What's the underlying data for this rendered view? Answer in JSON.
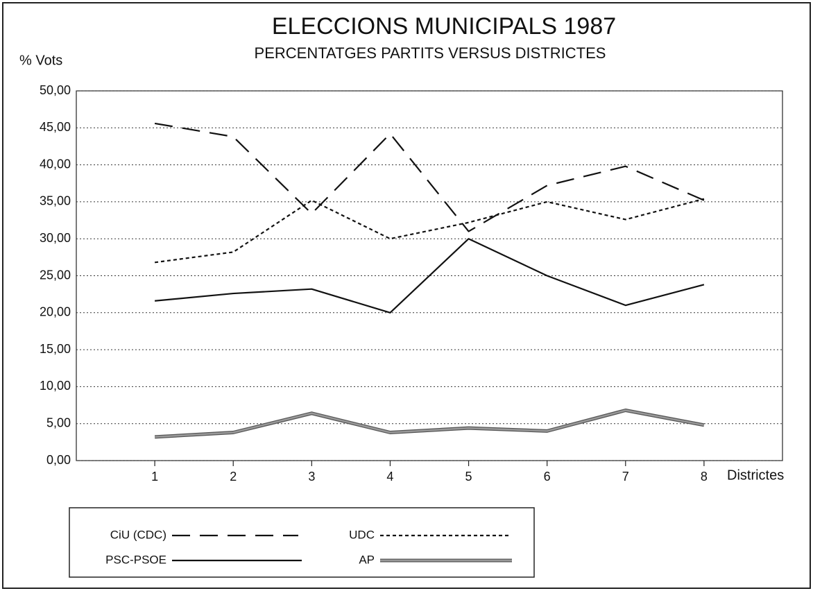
{
  "chart_data": {
    "type": "line",
    "title": "ELECCIONS MUNICIPALS 1987",
    "subtitle": "PERCENTATGES PARTITS VERSUS DISTRICTES",
    "y_label": "% Vots",
    "x_label": "Districtes",
    "x": [
      1,
      2,
      3,
      4,
      5,
      6,
      7,
      8
    ],
    "xlim": [
      0,
      9
    ],
    "xticks": [
      1,
      2,
      3,
      4,
      5,
      6,
      7,
      8
    ],
    "ylim": [
      0,
      50
    ],
    "yticks": [
      {
        "value": 0,
        "label": "0,00"
      },
      {
        "value": 5,
        "label": "5,00"
      },
      {
        "value": 10,
        "label": "10,00"
      },
      {
        "value": 15,
        "label": "15,00"
      },
      {
        "value": 20,
        "label": "20,00"
      },
      {
        "value": 25,
        "label": "25,00"
      },
      {
        "value": 30,
        "label": "30,00"
      },
      {
        "value": 35,
        "label": "35,00"
      },
      {
        "value": 40,
        "label": "40,00"
      },
      {
        "value": 45,
        "label": "45,00"
      },
      {
        "value": 50,
        "label": "50,00"
      }
    ],
    "grid": true,
    "legend": "bottom",
    "series": [
      {
        "name": "CiU (CDC)",
        "color": "#111111",
        "style": "dashed",
        "values": [
          45.6,
          43.8,
          33.4,
          44.2,
          31.0,
          37.2,
          39.8,
          35.2
        ]
      },
      {
        "name": "UDC",
        "color": "#111111",
        "style": "dotted",
        "values": [
          26.8,
          28.2,
          35.2,
          30.0,
          32.2,
          35.0,
          32.6,
          35.4
        ]
      },
      {
        "name": "PSC-PSOE",
        "color": "#111111",
        "style": "solid",
        "values": [
          21.6,
          22.6,
          23.2,
          20.0,
          30.0,
          25.0,
          21.0,
          23.8
        ]
      },
      {
        "name": "AP",
        "color": "#9a9a9a",
        "style": "double",
        "values": [
          3.2,
          3.8,
          6.4,
          3.8,
          4.4,
          4.0,
          6.8,
          4.8
        ]
      }
    ]
  }
}
